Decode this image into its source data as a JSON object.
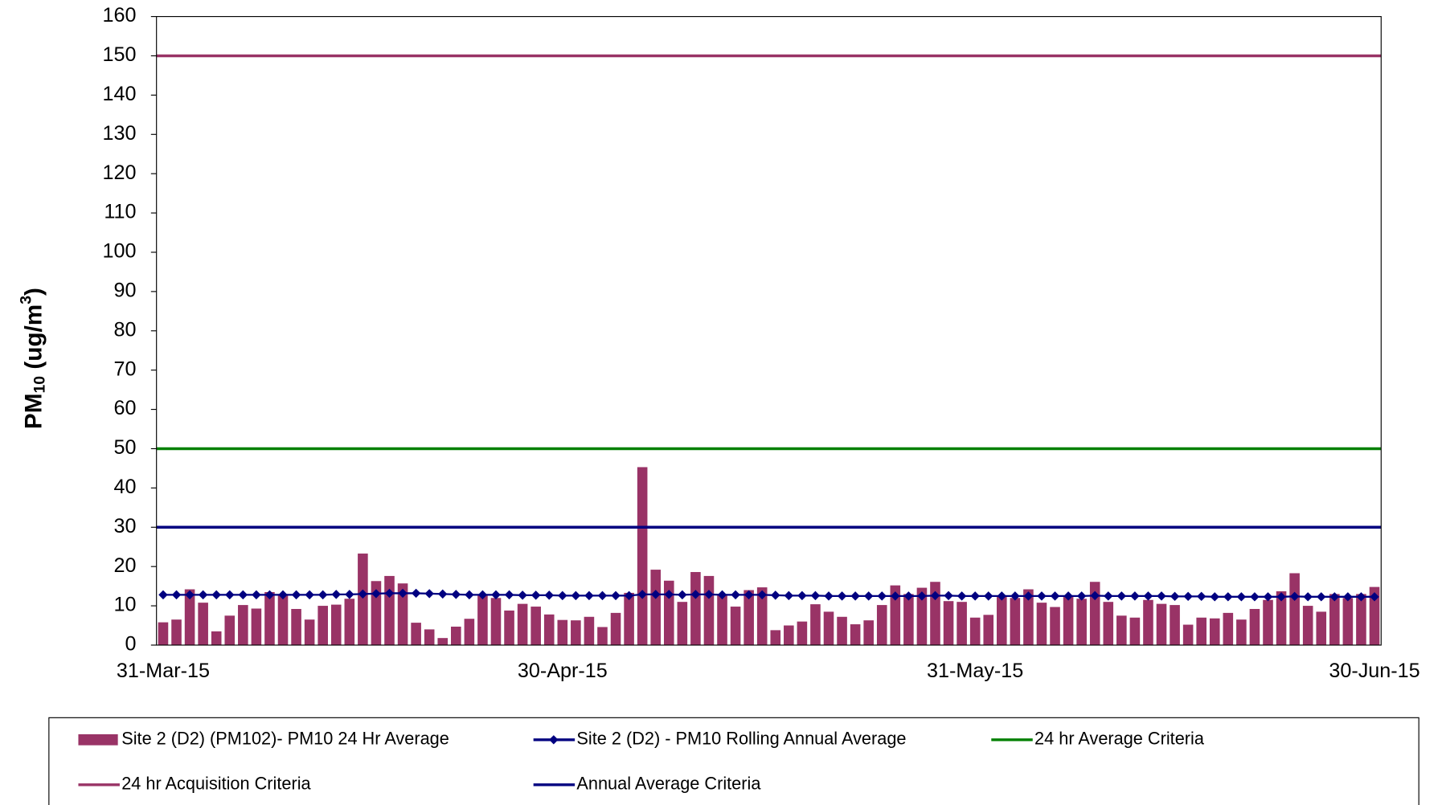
{
  "chart_data": {
    "type": "bar",
    "ylabel": {
      "main": "PM",
      "sub": "10",
      "mid": " (ug/m",
      "sup": "3",
      "end": ")"
    },
    "categories": [
      "31-Mar-15",
      null,
      null,
      null,
      null,
      null,
      null,
      null,
      null,
      null,
      null,
      null,
      null,
      null,
      null,
      null,
      null,
      null,
      null,
      null,
      null,
      null,
      null,
      null,
      null,
      null,
      null,
      null,
      null,
      null,
      "30-Apr-15",
      null,
      null,
      null,
      null,
      null,
      null,
      null,
      null,
      null,
      null,
      null,
      null,
      null,
      null,
      null,
      null,
      null,
      null,
      null,
      null,
      null,
      null,
      null,
      null,
      null,
      null,
      null,
      null,
      null,
      null,
      "31-May-15",
      null,
      null,
      null,
      null,
      null,
      null,
      null,
      null,
      null,
      null,
      null,
      null,
      null,
      null,
      null,
      null,
      null,
      null,
      null,
      null,
      null,
      null,
      null,
      null,
      null,
      null,
      null,
      null,
      null,
      "30-Jun-15"
    ],
    "ylim": [
      0,
      160
    ],
    "yticks": [
      0,
      10,
      20,
      30,
      40,
      50,
      60,
      70,
      80,
      90,
      100,
      110,
      120,
      130,
      140,
      150,
      160
    ],
    "series": [
      {
        "name": "Site 2 (D2) (PM102)- PM10 24 Hr Average",
        "type": "bar",
        "color": "#993366",
        "values": [
          5.8,
          6.5,
          14.2,
          10.8,
          3.5,
          7.5,
          10.2,
          9.3,
          13.5,
          13.0,
          9.2,
          6.5,
          10.0,
          10.3,
          11.8,
          23.3,
          16.3,
          17.6,
          15.7,
          5.7,
          4.0,
          1.8,
          4.7,
          6.7,
          12.8,
          12.0,
          8.8,
          10.5,
          9.8,
          7.8,
          6.4,
          6.3,
          7.2,
          4.6,
          8.2,
          13.3,
          45.3,
          19.2,
          16.4,
          11.0,
          18.6,
          17.6,
          13.0,
          9.8,
          14.0,
          14.7,
          3.8,
          5.0,
          6.0,
          10.4,
          8.5,
          7.2,
          5.3,
          6.3,
          10.2,
          15.2,
          13.0,
          14.6,
          16.1,
          11.2,
          11.0,
          7.0,
          7.7,
          12.5,
          12.0,
          14.2,
          10.8,
          9.7,
          12.5,
          11.8,
          16.1,
          11.0,
          7.5,
          7.0,
          11.5,
          10.5,
          10.2,
          5.2,
          7.0,
          6.8,
          8.2,
          6.5,
          9.2,
          11.5,
          13.7,
          18.3,
          10.0,
          8.5,
          13.0,
          12.0,
          13.0,
          14.8
        ]
      },
      {
        "name": "Site 2 (D2) - PM10 Rolling Annual Average",
        "type": "line-marker",
        "color": "#000080",
        "values": [
          12.8,
          12.8,
          12.8,
          12.8,
          12.8,
          12.8,
          12.8,
          12.8,
          12.8,
          12.8,
          12.8,
          12.8,
          12.8,
          12.9,
          12.9,
          13.0,
          13.1,
          13.2,
          13.2,
          13.2,
          13.1,
          13.0,
          12.9,
          12.8,
          12.8,
          12.8,
          12.8,
          12.7,
          12.7,
          12.7,
          12.6,
          12.6,
          12.6,
          12.6,
          12.6,
          12.6,
          12.9,
          12.9,
          12.9,
          12.8,
          12.9,
          12.9,
          12.8,
          12.8,
          12.8,
          12.8,
          12.7,
          12.6,
          12.6,
          12.6,
          12.5,
          12.5,
          12.5,
          12.5,
          12.5,
          12.5,
          12.5,
          12.5,
          12.6,
          12.6,
          12.5,
          12.5,
          12.5,
          12.5,
          12.5,
          12.5,
          12.5,
          12.5,
          12.5,
          12.5,
          12.6,
          12.5,
          12.5,
          12.5,
          12.5,
          12.5,
          12.4,
          12.4,
          12.4,
          12.3,
          12.3,
          12.3,
          12.3,
          12.3,
          12.3,
          12.4,
          12.3,
          12.3,
          12.3,
          12.3,
          12.3,
          12.3
        ]
      },
      {
        "name": "24 hr Average Criteria",
        "type": "hline",
        "color": "#008000",
        "value": 50
      },
      {
        "name": "24 hr Acquisition Criteria",
        "type": "hline",
        "color": "#993366",
        "value": 150
      },
      {
        "name": "Annual Average Criteria",
        "type": "hline",
        "color": "#000080",
        "value": 30
      }
    ]
  }
}
